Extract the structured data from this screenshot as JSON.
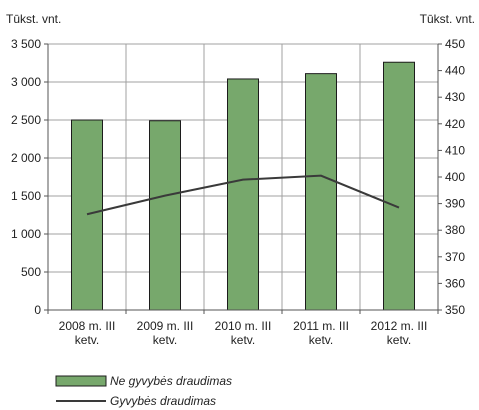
{
  "chart_data": {
    "type": "bar",
    "title": "",
    "categories": [
      [
        "2008 m. III",
        "ketv."
      ],
      [
        "2009 m. III",
        "ketv."
      ],
      [
        "2010 m. III",
        "ketv."
      ],
      [
        "2011 m. III",
        "ketv."
      ],
      [
        "2012 m. III",
        "ketv."
      ]
    ],
    "y_left": {
      "unit_label": "Tūkst. vnt.",
      "min": 0,
      "max": 3500,
      "step": 500,
      "tick_labels": [
        "0",
        "500",
        "1 000",
        "1 500",
        "2 000",
        "2 500",
        "3 000",
        "3 500"
      ]
    },
    "y_right": {
      "unit_label": "Tūkst. vnt.",
      "min": 350,
      "max": 450,
      "step": 10,
      "tick_labels": [
        "350",
        "360",
        "370",
        "380",
        "390",
        "400",
        "410",
        "420",
        "430",
        "440",
        "450"
      ]
    },
    "grid": true,
    "legend_placement": "bottom-left",
    "series": [
      {
        "name": "Ne gyvybės draudimas",
        "kind": "bar",
        "axis": "left",
        "color": "#77a86c",
        "values": [
          2500,
          2490,
          3040,
          3110,
          3260
        ]
      },
      {
        "name": "Gyvybės draudimas",
        "kind": "line",
        "axis": "right",
        "color": "#3a3a3a",
        "values": [
          386,
          393,
          399,
          400.5,
          388.5
        ]
      }
    ]
  }
}
